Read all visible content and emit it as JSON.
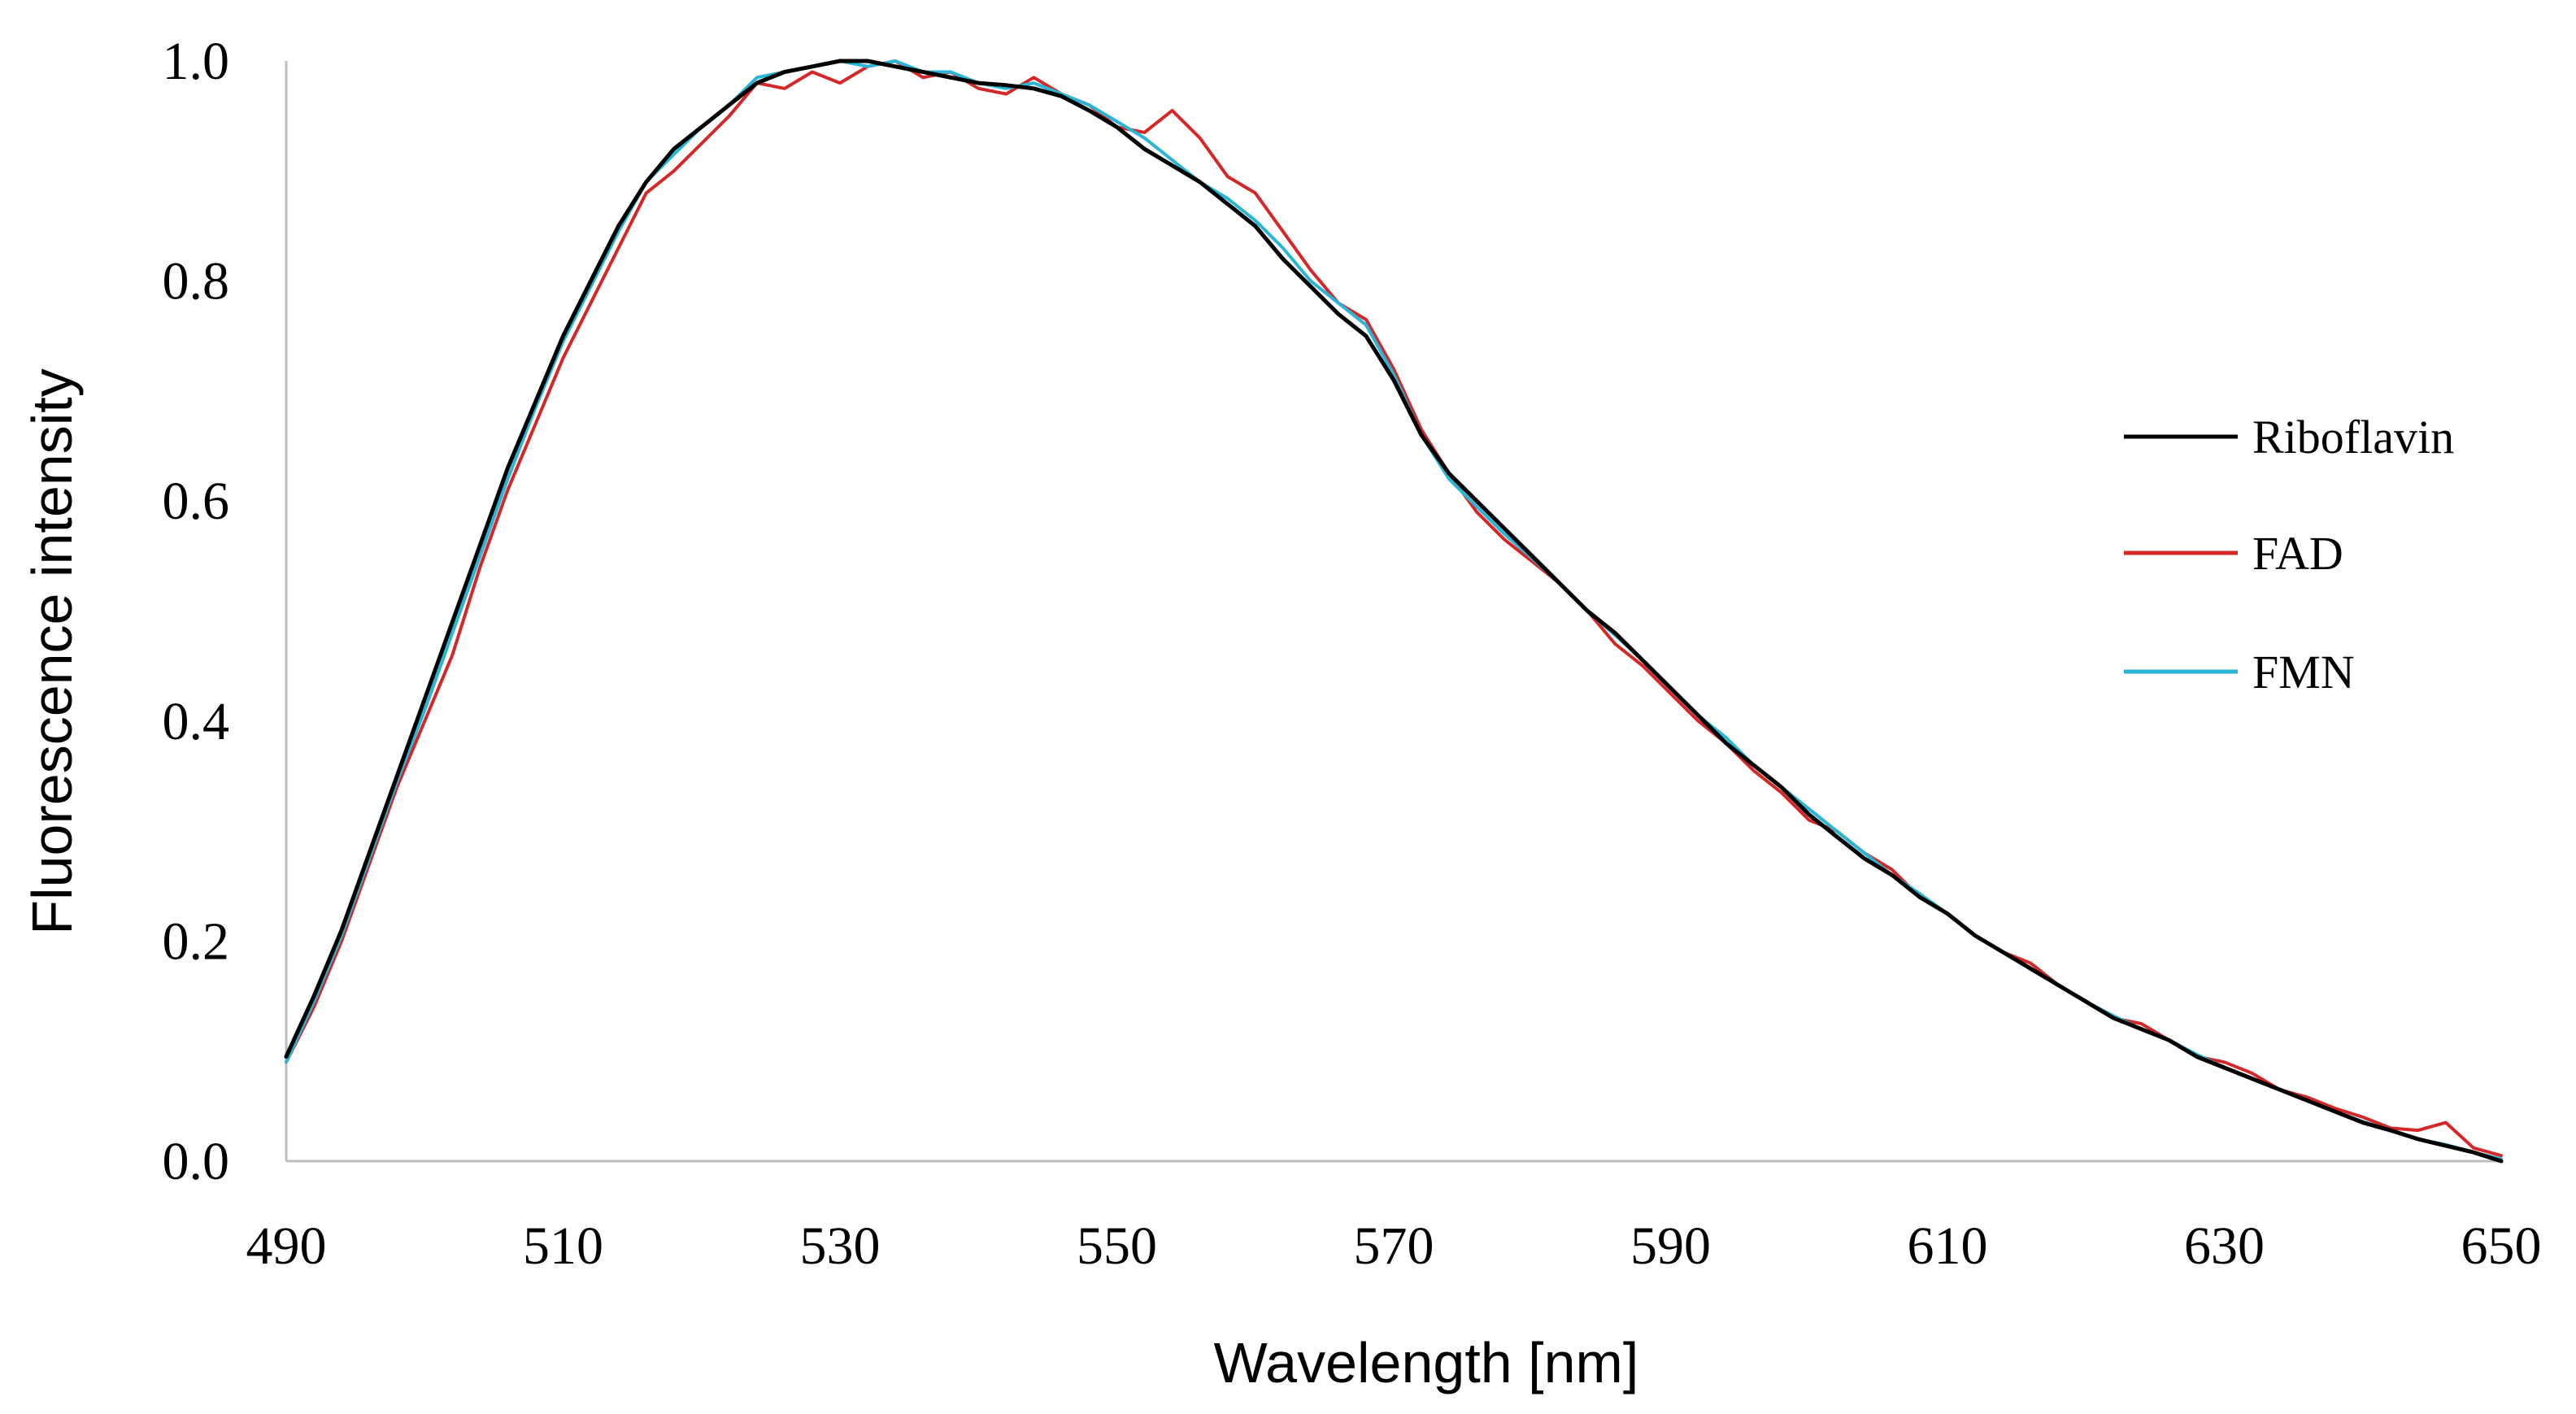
{
  "chart_data": {
    "type": "line",
    "title": "",
    "xlabel": "Wavelength [nm]",
    "ylabel": "Fluorescence intensity",
    "xlim": [
      490,
      650
    ],
    "ylim": [
      0.0,
      1.0
    ],
    "xticks": [
      490,
      510,
      530,
      550,
      570,
      590,
      610,
      630,
      650
    ],
    "xtick_labels": [
      "490",
      "510",
      "530",
      "550",
      "570",
      "590",
      "610",
      "630",
      "650"
    ],
    "yticks": [
      0.0,
      0.2,
      0.4,
      0.6,
      0.8,
      1.0
    ],
    "ytick_labels": [
      "0.0",
      "0.2",
      "0.4",
      "0.6",
      "0.8",
      "1.0"
    ],
    "grid": false,
    "legend_position": "right",
    "series": [
      {
        "name": "Riboflavin",
        "color": "#000000",
        "x": [
          490,
          492,
          494,
          496,
          498,
          500,
          502,
          504,
          506,
          508,
          510,
          512,
          514,
          516,
          518,
          520,
          522,
          524,
          526,
          528,
          530,
          532,
          534,
          536,
          538,
          540,
          542,
          544,
          546,
          548,
          550,
          552,
          554,
          556,
          558,
          560,
          562,
          564,
          566,
          568,
          570,
          572,
          574,
          576,
          578,
          580,
          582,
          584,
          586,
          588,
          590,
          592,
          594,
          596,
          598,
          600,
          602,
          604,
          606,
          608,
          610,
          612,
          614,
          616,
          618,
          620,
          622,
          624,
          626,
          628,
          630,
          632,
          634,
          636,
          638,
          640,
          642,
          644,
          646,
          648,
          650
        ],
        "values": [
          0.095,
          0.15,
          0.21,
          0.28,
          0.35,
          0.42,
          0.49,
          0.56,
          0.63,
          0.69,
          0.75,
          0.8,
          0.85,
          0.89,
          0.92,
          0.94,
          0.96,
          0.98,
          0.99,
          0.995,
          1.0,
          1.0,
          0.995,
          0.99,
          0.985,
          0.98,
          0.978,
          0.975,
          0.968,
          0.955,
          0.94,
          0.92,
          0.905,
          0.89,
          0.87,
          0.85,
          0.82,
          0.795,
          0.77,
          0.75,
          0.71,
          0.66,
          0.625,
          0.6,
          0.575,
          0.55,
          0.525,
          0.5,
          0.48,
          0.455,
          0.43,
          0.405,
          0.38,
          0.36,
          0.34,
          0.315,
          0.295,
          0.275,
          0.26,
          0.24,
          0.225,
          0.205,
          0.19,
          0.175,
          0.16,
          0.145,
          0.13,
          0.12,
          0.11,
          0.095,
          0.085,
          0.075,
          0.065,
          0.055,
          0.045,
          0.035,
          0.028,
          0.02,
          0.014,
          0.008,
          0.0
        ]
      },
      {
        "name": "FAD",
        "color": "#d62728",
        "x": [
          490,
          492,
          494,
          496,
          498,
          500,
          502,
          504,
          506,
          508,
          510,
          512,
          514,
          516,
          518,
          520,
          522,
          524,
          526,
          528,
          530,
          532,
          534,
          536,
          538,
          540,
          542,
          544,
          546,
          548,
          550,
          552,
          554,
          556,
          558,
          560,
          562,
          564,
          566,
          568,
          570,
          572,
          574,
          576,
          578,
          580,
          582,
          584,
          586,
          588,
          590,
          592,
          594,
          596,
          598,
          600,
          602,
          604,
          606,
          608,
          610,
          612,
          614,
          616,
          618,
          620,
          622,
          624,
          626,
          628,
          630,
          632,
          634,
          636,
          638,
          640,
          642,
          644,
          646,
          648,
          650
        ],
        "values": [
          0.09,
          0.14,
          0.2,
          0.27,
          0.34,
          0.4,
          0.46,
          0.54,
          0.61,
          0.67,
          0.73,
          0.78,
          0.83,
          0.88,
          0.9,
          0.925,
          0.95,
          0.98,
          0.975,
          0.99,
          0.98,
          0.995,
          1.0,
          0.985,
          0.99,
          0.975,
          0.97,
          0.985,
          0.97,
          0.96,
          0.94,
          0.935,
          0.955,
          0.93,
          0.895,
          0.88,
          0.845,
          0.81,
          0.78,
          0.765,
          0.72,
          0.665,
          0.625,
          0.59,
          0.565,
          0.545,
          0.525,
          0.5,
          0.47,
          0.45,
          0.425,
          0.4,
          0.38,
          0.355,
          0.335,
          0.31,
          0.3,
          0.28,
          0.265,
          0.24,
          0.225,
          0.205,
          0.19,
          0.18,
          0.16,
          0.145,
          0.13,
          0.125,
          0.11,
          0.095,
          0.09,
          0.08,
          0.065,
          0.058,
          0.048,
          0.04,
          0.03,
          0.028,
          0.035,
          0.012,
          0.005
        ]
      },
      {
        "name": "FMN",
        "color": "#29b6d6",
        "x": [
          490,
          492,
          494,
          496,
          498,
          500,
          502,
          504,
          506,
          508,
          510,
          512,
          514,
          516,
          518,
          520,
          522,
          524,
          526,
          528,
          530,
          532,
          534,
          536,
          538,
          540,
          542,
          544,
          546,
          548,
          550,
          552,
          554,
          556,
          558,
          560,
          562,
          564,
          566,
          568,
          570,
          572,
          574,
          576,
          578,
          580,
          582,
          584,
          586,
          588,
          590,
          592,
          594,
          596,
          598,
          600,
          602,
          604,
          606,
          608,
          610,
          612,
          614,
          616,
          618,
          620,
          622,
          624,
          626,
          628,
          630,
          632,
          634,
          636,
          638,
          640,
          642,
          644,
          646,
          648,
          650
        ],
        "values": [
          0.09,
          0.145,
          0.205,
          0.275,
          0.345,
          0.41,
          0.48,
          0.55,
          0.62,
          0.685,
          0.745,
          0.795,
          0.845,
          0.89,
          0.915,
          0.94,
          0.96,
          0.985,
          0.99,
          0.995,
          1.0,
          0.995,
          1.0,
          0.99,
          0.99,
          0.98,
          0.975,
          0.98,
          0.97,
          0.96,
          0.945,
          0.93,
          0.91,
          0.89,
          0.875,
          0.855,
          0.83,
          0.8,
          0.78,
          0.76,
          0.715,
          0.66,
          0.62,
          0.595,
          0.57,
          0.548,
          0.525,
          0.5,
          0.478,
          0.455,
          0.43,
          0.405,
          0.385,
          0.36,
          0.34,
          0.32,
          0.3,
          0.28,
          0.26,
          0.243,
          0.225,
          0.205,
          0.19,
          0.175,
          0.16,
          0.145,
          0.132,
          0.12,
          0.11,
          0.097,
          0.085,
          0.075,
          0.065,
          0.055,
          0.045,
          0.036,
          0.028,
          0.02,
          0.015,
          0.008,
          0.002
        ]
      }
    ]
  }
}
